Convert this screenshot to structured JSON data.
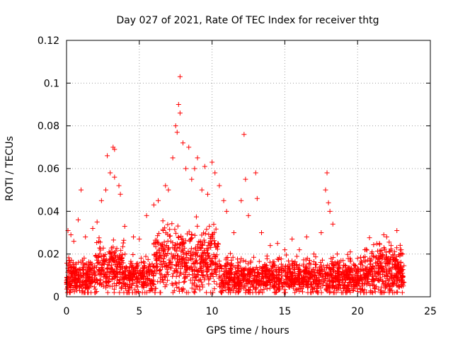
{
  "chart_data": {
    "type": "scatter",
    "title": "Day 027 of 2021, Rate Of TEC Index for receiver thtg",
    "xlabel": "GPS time / hours",
    "ylabel": "ROTI / TECUs",
    "xlim": [
      0,
      25
    ],
    "ylim": [
      0,
      0.12
    ],
    "x_ticks": [
      0,
      5,
      10,
      15,
      20,
      25
    ],
    "y_ticks": [
      0,
      0.02,
      0.04,
      0.06,
      0.08,
      0.1,
      0.12
    ],
    "x_tick_labels": [
      "0",
      "5",
      "10",
      "15",
      "20",
      "25"
    ],
    "y_tick_labels": [
      "0",
      "0.02",
      "0.04",
      "0.06",
      "0.08",
      "0.1",
      "0.12"
    ],
    "grid": true,
    "marker": "plus",
    "marker_color": "#ff0000",
    "data_range_hours": [
      0,
      23.2
    ],
    "series": [
      {
        "name": "ROTI",
        "points": [
          [
            0.1,
            0.031
          ],
          [
            0.3,
            0.029
          ],
          [
            0.5,
            0.026
          ],
          [
            0.8,
            0.036
          ],
          [
            1.0,
            0.05
          ],
          [
            1.3,
            0.028
          ],
          [
            1.8,
            0.032
          ],
          [
            2.1,
            0.035
          ],
          [
            2.4,
            0.045
          ],
          [
            2.7,
            0.05
          ],
          [
            2.8,
            0.066
          ],
          [
            3.2,
            0.07
          ],
          [
            3.3,
            0.069
          ],
          [
            3.0,
            0.058
          ],
          [
            3.3,
            0.056
          ],
          [
            3.6,
            0.052
          ],
          [
            3.7,
            0.048
          ],
          [
            4.0,
            0.033
          ],
          [
            4.6,
            0.028
          ],
          [
            5.0,
            0.027
          ],
          [
            5.5,
            0.038
          ],
          [
            6.0,
            0.043
          ],
          [
            6.3,
            0.045
          ],
          [
            6.8,
            0.052
          ],
          [
            7.0,
            0.05
          ],
          [
            7.3,
            0.065
          ],
          [
            7.5,
            0.08
          ],
          [
            7.6,
            0.077
          ],
          [
            7.7,
            0.09
          ],
          [
            7.8,
            0.103
          ],
          [
            7.8,
            0.086
          ],
          [
            8.0,
            0.072
          ],
          [
            8.2,
            0.06
          ],
          [
            8.4,
            0.07
          ],
          [
            8.6,
            0.055
          ],
          [
            8.8,
            0.06
          ],
          [
            9.0,
            0.065
          ],
          [
            9.3,
            0.05
          ],
          [
            9.5,
            0.061
          ],
          [
            9.7,
            0.048
          ],
          [
            10.0,
            0.063
          ],
          [
            10.2,
            0.058
          ],
          [
            10.5,
            0.052
          ],
          [
            10.8,
            0.045
          ],
          [
            11.0,
            0.04
          ],
          [
            11.5,
            0.03
          ],
          [
            12.0,
            0.045
          ],
          [
            12.2,
            0.076
          ],
          [
            12.3,
            0.055
          ],
          [
            12.5,
            0.038
          ],
          [
            13.0,
            0.058
          ],
          [
            13.1,
            0.046
          ],
          [
            13.4,
            0.03
          ],
          [
            14.0,
            0.024
          ],
          [
            14.5,
            0.025
          ],
          [
            15.0,
            0.022
          ],
          [
            15.5,
            0.027
          ],
          [
            16.0,
            0.022
          ],
          [
            16.5,
            0.028
          ],
          [
            17.0,
            0.02
          ],
          [
            17.5,
            0.03
          ],
          [
            17.8,
            0.05
          ],
          [
            17.9,
            0.058
          ],
          [
            18.0,
            0.044
          ],
          [
            18.1,
            0.04
          ],
          [
            18.3,
            0.034
          ],
          [
            18.6,
            0.02
          ],
          [
            19.0,
            0.017
          ],
          [
            19.5,
            0.021
          ],
          [
            20.0,
            0.018
          ],
          [
            20.5,
            0.022
          ],
          [
            21.0,
            0.021
          ],
          [
            21.5,
            0.025
          ],
          [
            21.8,
            0.029
          ],
          [
            22.0,
            0.028
          ],
          [
            22.3,
            0.024
          ],
          [
            22.7,
            0.031
          ],
          [
            23.0,
            0.022
          ],
          [
            23.1,
            0.02
          ],
          [
            1.5,
            0.012
          ],
          [
            2.0,
            0.01
          ],
          [
            3.5,
            0.014
          ],
          [
            4.5,
            0.011
          ],
          [
            5.5,
            0.012
          ],
          [
            6.5,
            0.015
          ],
          [
            7.2,
            0.02
          ],
          [
            8.5,
            0.018
          ],
          [
            9.5,
            0.015
          ],
          [
            11.2,
            0.012
          ],
          [
            12.8,
            0.01
          ],
          [
            13.8,
            0.011
          ],
          [
            15.2,
            0.009
          ],
          [
            16.8,
            0.01
          ],
          [
            18.8,
            0.008
          ],
          [
            20.2,
            0.01
          ],
          [
            21.2,
            0.011
          ],
          [
            22.5,
            0.009
          ],
          [
            0.6,
            0.005
          ],
          [
            5.8,
            0.004
          ],
          [
            10.6,
            0.005
          ],
          [
            14.6,
            0.006
          ],
          [
            19.6,
            0.004
          ]
        ]
      }
    ]
  }
}
